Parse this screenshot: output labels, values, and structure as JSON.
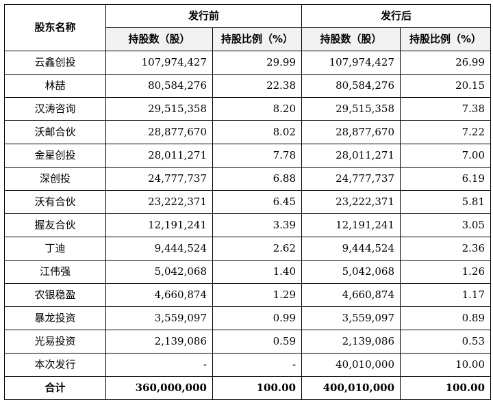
{
  "table": {
    "headers": {
      "holder_name": "股东名称",
      "before_group": "发行前",
      "after_group": "发行后",
      "shares": "持股数（股）",
      "ratio": "持股比例（%）"
    },
    "rows": [
      {
        "name": "云鑫创投",
        "before_shares": "107,974,427",
        "before_ratio": "29.99",
        "after_shares": "107,974,427",
        "after_ratio": "26.99"
      },
      {
        "name": "林喆",
        "before_shares": "80,584,276",
        "before_ratio": "22.38",
        "after_shares": "80,584,276",
        "after_ratio": "20.15"
      },
      {
        "name": "汉涛咨询",
        "before_shares": "29,515,358",
        "before_ratio": "8.20",
        "after_shares": "29,515,358",
        "after_ratio": "7.38"
      },
      {
        "name": "沃邮合伙",
        "before_shares": "28,877,670",
        "before_ratio": "8.02",
        "after_shares": "28,877,670",
        "after_ratio": "7.22"
      },
      {
        "name": "金星创投",
        "before_shares": "28,011,271",
        "before_ratio": "7.78",
        "after_shares": "28,011,271",
        "after_ratio": "7.00"
      },
      {
        "name": "深创投",
        "before_shares": "24,777,737",
        "before_ratio": "6.88",
        "after_shares": "24,777,737",
        "after_ratio": "6.19"
      },
      {
        "name": "沃有合伙",
        "before_shares": "23,222,371",
        "before_ratio": "6.45",
        "after_shares": "23,222,371",
        "after_ratio": "5.81"
      },
      {
        "name": "握友合伙",
        "before_shares": "12,191,241",
        "before_ratio": "3.39",
        "after_shares": "12,191,241",
        "after_ratio": "3.05"
      },
      {
        "name": "丁迪",
        "before_shares": "9,444,524",
        "before_ratio": "2.62",
        "after_shares": "9,444,524",
        "after_ratio": "2.36"
      },
      {
        "name": "江伟强",
        "before_shares": "5,042,068",
        "before_ratio": "1.40",
        "after_shares": "5,042,068",
        "after_ratio": "1.26"
      },
      {
        "name": "农银稳盈",
        "before_shares": "4,660,874",
        "before_ratio": "1.29",
        "after_shares": "4,660,874",
        "after_ratio": "1.17"
      },
      {
        "name": "暴龙投资",
        "before_shares": "3,559,097",
        "before_ratio": "0.99",
        "after_shares": "3,559,097",
        "after_ratio": "0.89"
      },
      {
        "name": "光易投资",
        "before_shares": "2,139,086",
        "before_ratio": "0.59",
        "after_shares": "2,139,086",
        "after_ratio": "0.53"
      },
      {
        "name": "本次发行",
        "before_shares": "-",
        "before_ratio": "-",
        "after_shares": "40,010,000",
        "after_ratio": "10.00"
      }
    ],
    "total": {
      "name": "合计",
      "before_shares": "360,000,000",
      "before_ratio": "100.00",
      "after_shares": "400,010,000",
      "after_ratio": "100.00"
    }
  }
}
